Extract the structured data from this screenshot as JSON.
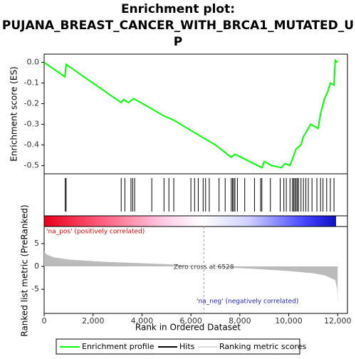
{
  "chart_data": [
    {
      "type": "line",
      "title": [
        "Enrichment plot:",
        "PUJANA_BREAST_CANCER_WITH_BRCA1_MUTATED_U",
        "P"
      ],
      "ylabel": "Enrichment score (ES)",
      "xlim": [
        0,
        12400
      ],
      "ylim": [
        -0.54,
        0.04
      ],
      "yticks": [
        {
          "value": 0,
          "label": "0.0"
        },
        -0.1,
        -0.2,
        -0.3,
        -0.4,
        -0.5
      ],
      "series": [
        {
          "name": "Enrichment profile",
          "color": "#00ff00",
          "x": [
            0,
            850,
            900,
            3150,
            3250,
            3450,
            3650,
            4400,
            4900,
            5300,
            6000,
            7000,
            7650,
            7800,
            8900,
            9000,
            9300,
            9700,
            9850,
            10050,
            10300,
            10500,
            10600,
            10900,
            11200,
            11300,
            11450,
            11600,
            11700,
            11850,
            11900,
            12000
          ],
          "values": [
            0,
            -0.07,
            -0.01,
            -0.195,
            -0.18,
            -0.195,
            -0.175,
            -0.225,
            -0.26,
            -0.28,
            -0.33,
            -0.4,
            -0.46,
            -0.445,
            -0.51,
            -0.48,
            -0.5,
            -0.51,
            -0.49,
            -0.5,
            -0.42,
            -0.4,
            -0.36,
            -0.3,
            -0.32,
            -0.25,
            -0.18,
            -0.14,
            -0.1,
            -0.11,
            0.01,
            0
          ]
        }
      ]
    },
    {
      "type": "rug",
      "xlim": [
        0,
        12400
      ],
      "series": [
        {
          "name": "Hits",
          "color": "#000000",
          "x": [
            860,
            900,
            3150,
            3300,
            3550,
            3620,
            3700,
            4400,
            4900,
            5100,
            5300,
            6000,
            6150,
            6300,
            6500,
            6600,
            6750,
            7150,
            7400,
            7650,
            7700,
            7750,
            7800,
            7900,
            8200,
            8600,
            8850,
            8900,
            9250,
            9650,
            9800,
            9900,
            10050,
            10150,
            10200,
            10250,
            10300,
            10350,
            10400,
            10500,
            10600,
            10700,
            10800,
            10950,
            11150,
            11300,
            11400,
            11550,
            11700,
            11850
          ]
        }
      ]
    },
    {
      "type": "area",
      "xlabel": "Rank in Ordered Dataset",
      "ylabel": "Ranked list metric (PreRanked)",
      "xlim": [
        0,
        12400
      ],
      "ylim": [
        -10.3,
        8.75
      ],
      "xticks": [
        0,
        {
          "value": 2000,
          "label": "2,000"
        },
        {
          "value": 4000,
          "label": "4,000"
        },
        {
          "value": 6000,
          "label": "6,000"
        },
        {
          "value": 8000,
          "label": "8,000"
        },
        {
          "value": 10000,
          "label": "10,000"
        },
        {
          "value": 12000,
          "label": "12,000"
        }
      ],
      "yticks": [
        5,
        0,
        -5
      ],
      "zero_cross": 6528,
      "annotations": [
        "'na_pos' (positively correlated)",
        "Zero cross at 6528",
        "'na_neg' (negatively correlated)"
      ],
      "series": [
        {
          "name": "Ranking metric scores",
          "color": "#bbbbbb",
          "x": [
            0,
            100,
            400,
            1000,
            2500,
            5000,
            6528,
            8500,
            10000,
            11000,
            11500,
            11900,
            11980,
            12000
          ],
          "values": [
            3.3,
            2.6,
            2.0,
            1.5,
            1.0,
            0.5,
            0,
            -0.5,
            -1.0,
            -1.5,
            -2.0,
            -3.0,
            -5.0,
            -8.0
          ]
        }
      ]
    }
  ]
}
